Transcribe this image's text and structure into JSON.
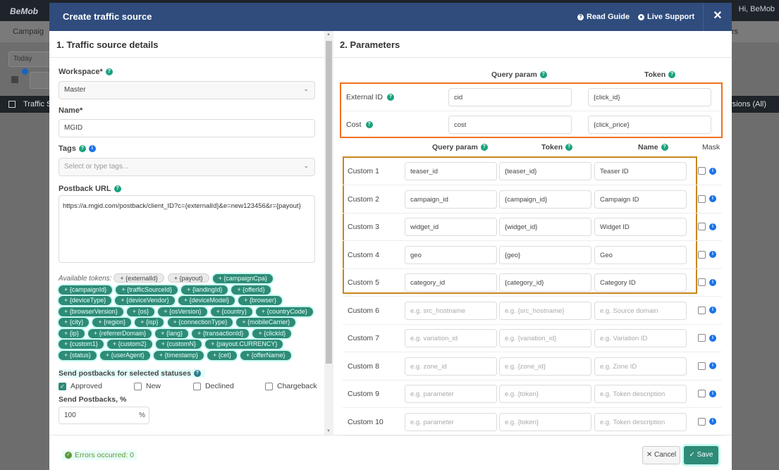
{
  "background": {
    "logo": "BeMob",
    "user": "Hi, BeMob",
    "nav_partial": "Campaig",
    "nav_right_partial": "rs",
    "date_filter": "Today",
    "notification_count": "5",
    "table_header_left": "Traffic S",
    "table_header_right": "rsions (All)"
  },
  "modal": {
    "title": "Create traffic source",
    "read_guide": "Read Guide",
    "live_support": "Live Support",
    "close": "✕"
  },
  "details": {
    "section_title": "1. Traffic source details",
    "workspace_label": "Workspace*",
    "workspace_value": "Master",
    "name_label": "Name*",
    "name_value": "MGID",
    "tags_label": "Tags",
    "tags_placeholder": "Select or type tags...",
    "postback_label": "Postback URL",
    "postback_value": "https://a.mgid.com/postback/client_ID?c={externalId}&e=new123456&r={payout}",
    "available_tokens_label": "Available tokens:",
    "tokens": [
      {
        "label": "+ {externalId}",
        "used": true
      },
      {
        "label": "+ {payout}",
        "used": true
      },
      {
        "label": "+ {campaignCpa}",
        "used": false
      },
      {
        "label": "+ {campaignId}",
        "used": false
      },
      {
        "label": "+ {trafficSourceId}",
        "used": false
      },
      {
        "label": "+ {landingId}",
        "used": false
      },
      {
        "label": "+ {offerId}",
        "used": false
      },
      {
        "label": "+ {deviceType}",
        "used": false
      },
      {
        "label": "+ {deviceVendor}",
        "used": false
      },
      {
        "label": "+ {deviceModel}",
        "used": false
      },
      {
        "label": "+ {browser}",
        "used": false
      },
      {
        "label": "+ {browserVersion}",
        "used": false
      },
      {
        "label": "+ {os}",
        "used": false
      },
      {
        "label": "+ {osVersion}",
        "used": false
      },
      {
        "label": "+ {country}",
        "used": false
      },
      {
        "label": "+ {countryCode}",
        "used": false
      },
      {
        "label": "+ {city}",
        "used": false
      },
      {
        "label": "+ {region}",
        "used": false
      },
      {
        "label": "+ {isp}",
        "used": false
      },
      {
        "label": "+ {connectionType}",
        "used": false
      },
      {
        "label": "+ {mobileCarrier}",
        "used": false
      },
      {
        "label": "+ {ip}",
        "used": false
      },
      {
        "label": "+ {referrerDomain}",
        "used": false
      },
      {
        "label": "+ {lang}",
        "used": false
      },
      {
        "label": "+ {transactionId}",
        "used": false
      },
      {
        "label": "+ {clickId}",
        "used": false
      },
      {
        "label": "+ {custom1}",
        "used": false
      },
      {
        "label": "+ {custom2}",
        "used": false
      },
      {
        "label": "+ {customN}",
        "used": false
      },
      {
        "label": "+ {payout.CURRENCY}",
        "used": false
      },
      {
        "label": "+ {status}",
        "used": false
      },
      {
        "label": "+ {userAgent}",
        "used": false
      },
      {
        "label": "+ {timestamp}",
        "used": false
      },
      {
        "label": "+ {cet}",
        "used": false
      },
      {
        "label": "+ {offerName}",
        "used": false
      }
    ],
    "statuses_label": "Send postbacks for selected statuses",
    "statuses": [
      {
        "label": "Approved",
        "checked": true
      },
      {
        "label": "New",
        "checked": false
      },
      {
        "label": "Declined",
        "checked": false
      },
      {
        "label": "Chargeback",
        "checked": false
      }
    ],
    "percent_label": "Send Postbacks, %",
    "percent_value": "100",
    "percent_suffix": "%"
  },
  "parameters": {
    "section_title": "2. Parameters",
    "top_headers": {
      "query": "Query param",
      "token": "Token"
    },
    "main_rows": [
      {
        "label": "External ID",
        "query": "cid",
        "token": "{click_id}"
      },
      {
        "label": "Cost",
        "query": "cost",
        "token": "{click_price}"
      }
    ],
    "custom_headers": {
      "query": "Query param",
      "token": "Token",
      "name": "Name",
      "mask": "Mask"
    },
    "custom_rows": [
      {
        "label": "Custom 1",
        "query": "teaser_id",
        "token": "{teaser_id}",
        "name": "Teaser ID",
        "placeholder": false
      },
      {
        "label": "Custom 2",
        "query": "campaign_id",
        "token": "{campaign_id}",
        "name": "Campaign ID",
        "placeholder": false
      },
      {
        "label": "Custom 3",
        "query": "widget_id",
        "token": "{widget_id}",
        "name": "Widget ID",
        "placeholder": false
      },
      {
        "label": "Custom 4",
        "query": "geo",
        "token": "{geo}",
        "name": "Geo",
        "placeholder": false
      },
      {
        "label": "Custom 5",
        "query": "category_id",
        "token": "{category_id}",
        "name": "Category ID",
        "placeholder": false
      },
      {
        "label": "Custom 6",
        "query": "e.g. src_hostname",
        "token": "e.g. {src_hostname}",
        "name": "e.g. Source domain",
        "placeholder": true
      },
      {
        "label": "Custom 7",
        "query": "e.g. variation_id",
        "token": "e.g. {variation_id}",
        "name": "e.g. Variation ID",
        "placeholder": true
      },
      {
        "label": "Custom 8",
        "query": "e.g. zone_id",
        "token": "e.g. {zone_id}",
        "name": "e.g. Zone ID",
        "placeholder": true
      },
      {
        "label": "Custom 9",
        "query": "e.g. parameter",
        "token": "e.g. {token}",
        "name": "e.g. Token description",
        "placeholder": true
      },
      {
        "label": "Custom 10",
        "query": "e.g. parameter",
        "token": "e.g. {token}",
        "name": "e.g. Token description",
        "placeholder": true
      }
    ]
  },
  "footer": {
    "errors": "Errors occurred: 0",
    "cancel": "✕ Cancel",
    "save": "✓ Save"
  },
  "colors": {
    "header": "#2f4c7d",
    "accent": "#2e8b76",
    "highlight_box_1": "#f07020",
    "highlight_box_2": "#c8861e"
  }
}
